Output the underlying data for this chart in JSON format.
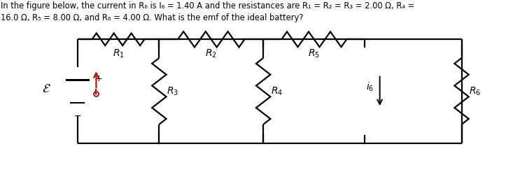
{
  "title_line1": "In the figure below, the current in R₆ is I₆ = 1.40 A and the resistances are R₁ = R₂ = R₃ = 2.00 Ω, R₄ =",
  "title_line2": "16.0 Ω, R₅ = 8.00 Ω, and R₆ = 4.00 Ω. What is the emf of the ideal battery?",
  "bg_color": "#ffffff",
  "line_color": "#000000",
  "text_color": "#000000",
  "arrow_color": "#cc0000",
  "figsize": [
    7.33,
    2.46
  ],
  "dpi": 100,
  "xL": 1.55,
  "xN1": 3.2,
  "xN2": 5.3,
  "xN3": 7.35,
  "xR": 9.3,
  "yT": 2.55,
  "yB": 0.55,
  "lw": 1.6
}
